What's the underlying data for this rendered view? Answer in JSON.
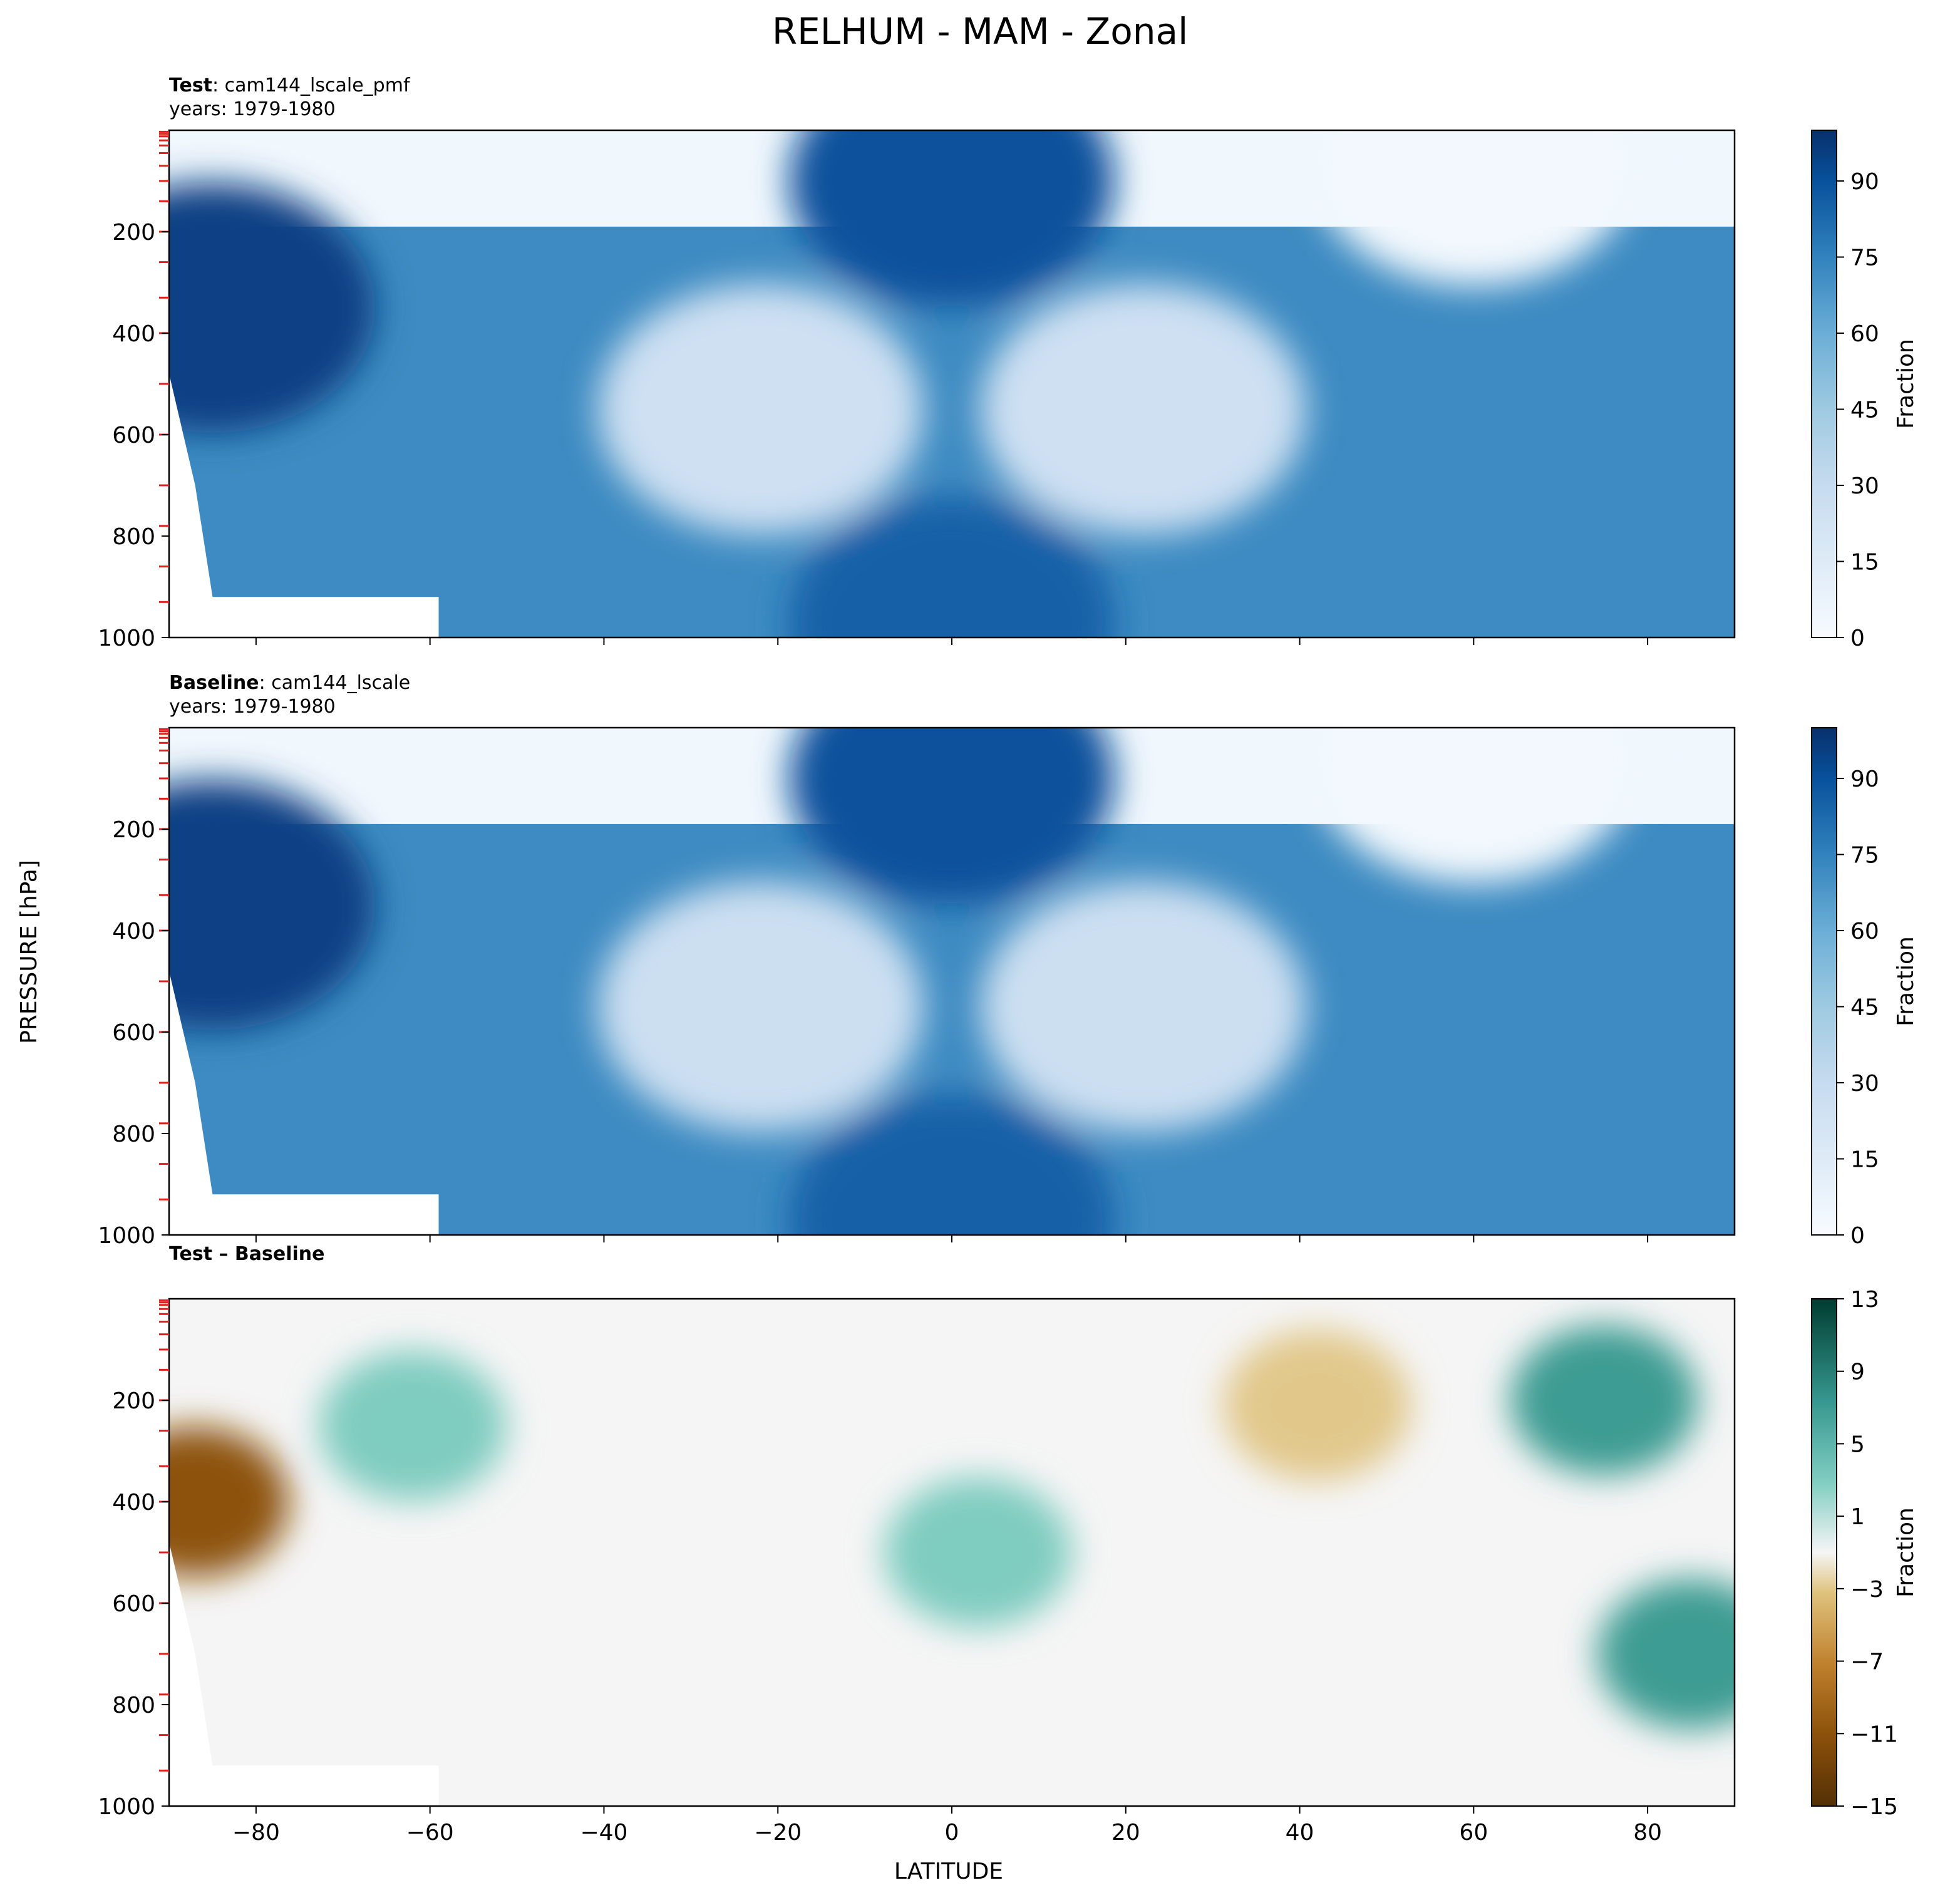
{
  "figure": {
    "title": "RELHUM - MAM - Zonal",
    "ylabel": "PRESSURE [hPa]",
    "xlabel": "LATITUDE"
  },
  "chart_data": [
    {
      "type": "heatmap",
      "panel": "test",
      "label_bold": "Test",
      "label_rest": ": cam144_lscale_pmf",
      "years": "years: 1979-1980",
      "xlim": [
        -90,
        90
      ],
      "ylim": [
        1000,
        0
      ],
      "x_ticks": [
        -80,
        -60,
        -40,
        -20,
        0,
        20,
        40,
        60,
        80
      ],
      "y_ticks": [
        200,
        400,
        600,
        800,
        1000
      ],
      "colorbar": {
        "label": "Fraction",
        "min": 0,
        "max": 100,
        "ticks": [
          0,
          15,
          30,
          45,
          60,
          75,
          90
        ],
        "cmap": "Blues"
      },
      "features": [
        {
          "name": "upper-tropical-max",
          "lat": 0,
          "pressure": 100,
          "value": 90
        },
        {
          "name": "sh-subtropical-dry",
          "lat": -22,
          "pressure": 550,
          "value": 25
        },
        {
          "name": "nh-subtropical-dry",
          "lat": 22,
          "pressure": 550,
          "value": 25
        },
        {
          "name": "sh-polar-moist",
          "lat": -85,
          "pressure": 350,
          "value": 95
        },
        {
          "name": "surface-tropics",
          "lat": 0,
          "pressure": 970,
          "value": 85
        },
        {
          "name": "stratosphere",
          "lat": 60,
          "pressure": 60,
          "value": 3
        }
      ]
    },
    {
      "type": "heatmap",
      "panel": "baseline",
      "label_bold": "Baseline",
      "label_rest": ": cam144_lscale",
      "years": "years: 1979-1980",
      "xlim": [
        -90,
        90
      ],
      "ylim": [
        1000,
        0
      ],
      "x_ticks": [
        -80,
        -60,
        -40,
        -20,
        0,
        20,
        40,
        60,
        80
      ],
      "y_ticks": [
        200,
        400,
        600,
        800,
        1000
      ],
      "colorbar": {
        "label": "Fraction",
        "min": 0,
        "max": 100,
        "ticks": [
          0,
          15,
          30,
          45,
          60,
          75,
          90
        ],
        "cmap": "Blues"
      },
      "features": [
        {
          "name": "upper-tropical-max",
          "lat": 0,
          "pressure": 100,
          "value": 90
        },
        {
          "name": "sh-subtropical-dry",
          "lat": -22,
          "pressure": 550,
          "value": 26
        },
        {
          "name": "nh-subtropical-dry",
          "lat": 22,
          "pressure": 550,
          "value": 26
        },
        {
          "name": "sh-polar-moist",
          "lat": -85,
          "pressure": 350,
          "value": 95
        },
        {
          "name": "surface-tropics",
          "lat": 0,
          "pressure": 970,
          "value": 85
        },
        {
          "name": "stratosphere",
          "lat": 60,
          "pressure": 60,
          "value": 3
        }
      ]
    },
    {
      "type": "heatmap",
      "panel": "difference",
      "label_bold": "Test – Baseline",
      "label_rest": "",
      "years": "",
      "xlim": [
        -90,
        90
      ],
      "ylim": [
        1000,
        0
      ],
      "x_ticks": [
        -80,
        -60,
        -40,
        -20,
        0,
        20,
        40,
        60,
        80
      ],
      "y_ticks": [
        200,
        400,
        600,
        800,
        1000
      ],
      "colorbar": {
        "label": "Fraction",
        "min": -15,
        "max": 13,
        "ticks": [
          -15,
          -11,
          -7,
          -3,
          1,
          5,
          9,
          13
        ],
        "tick_labels": [
          "−15",
          "−11",
          "−7",
          "−3",
          "1",
          "5",
          "9",
          "13"
        ],
        "cmap": "BrBG"
      },
      "features": [
        {
          "name": "sh-polar-dry",
          "lat": -87,
          "pressure": 400,
          "value": -11
        },
        {
          "name": "nh-upper-moist",
          "lat": 75,
          "pressure": 200,
          "value": 7
        },
        {
          "name": "nh-polar-moist",
          "lat": 85,
          "pressure": 700,
          "value": 7
        },
        {
          "name": "tropical-moist",
          "lat": 3,
          "pressure": 500,
          "value": 3
        },
        {
          "name": "nh-midlat-dry",
          "lat": 42,
          "pressure": 210,
          "value": -3
        },
        {
          "name": "sh-midlat-moist",
          "lat": -62,
          "pressure": 250,
          "value": 3
        }
      ]
    }
  ]
}
